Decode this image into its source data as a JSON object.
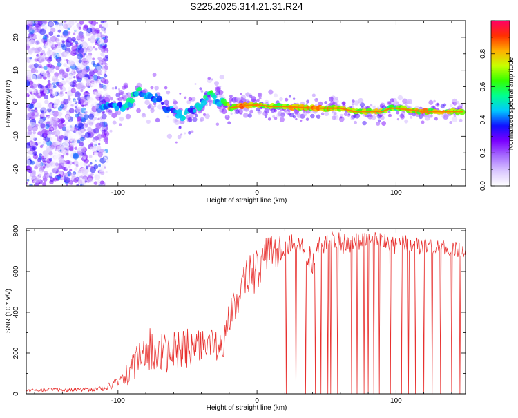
{
  "figure": {
    "title": "S225.2025.314.21.31.R24"
  },
  "colors": {
    "colorbar_stops": [
      "#ffffff",
      "#d9c6ff",
      "#a66cff",
      "#7a00ff",
      "#1010ff",
      "#00c8ff",
      "#00ff90",
      "#33ff00",
      "#c8ff00",
      "#ffb000",
      "#ff3000",
      "#ff0066"
    ],
    "snr_line": "#e8312f",
    "axis": "#000000"
  },
  "chart_data": [
    {
      "type": "heatmap",
      "xlabel": "Height of straight line (km)",
      "ylabel": "Frequency (Hz)",
      "xlim": [
        -166,
        150
      ],
      "ylim": [
        -25,
        25
      ],
      "xticks": [
        -100,
        0,
        100
      ],
      "xtick_labels": [
        "-100",
        "0",
        "100"
      ],
      "yticks": [
        -20,
        -10,
        0,
        10,
        20
      ],
      "ytick_labels": [
        "-20",
        "-10",
        "0",
        "10",
        "20"
      ],
      "colorbar": {
        "label": "Normalized spectral amplitude",
        "range": [
          0,
          1
        ],
        "ticks": [
          0,
          0.2,
          0.4,
          0.6,
          0.8
        ],
        "tick_labels": [
          "0.0",
          "0.2",
          "0.4",
          "0.6",
          "0.8"
        ]
      },
      "ridge": {
        "x": [
          -112,
          -100,
          -90,
          -85,
          -80,
          -72,
          -66,
          -60,
          -54,
          -46,
          -38,
          -32,
          -28,
          -20,
          -10,
          0,
          10,
          20,
          40,
          60,
          70,
          80,
          90,
          96,
          100,
          110,
          120,
          130,
          148
        ],
        "frequency": [
          -1.5,
          -1.5,
          1.0,
          3.5,
          2.0,
          1.5,
          -1.0,
          -3.0,
          -4.0,
          -2.0,
          1.0,
          3.0,
          0.5,
          -1.5,
          -0.7,
          -0.5,
          -1.0,
          -1.0,
          -1.5,
          -1.5,
          -2.5,
          -2.5,
          -2.5,
          -1.5,
          -1.5,
          -2.0,
          -2.5,
          -2.5,
          -2.5
        ],
        "amplitude": [
          0.45,
          0.5,
          0.55,
          0.55,
          0.5,
          0.45,
          0.4,
          0.45,
          0.5,
          0.45,
          0.55,
          0.6,
          0.5,
          0.8,
          0.9,
          0.85,
          0.75,
          0.8,
          0.85,
          0.85,
          0.8,
          0.75,
          0.8,
          0.7,
          0.7,
          0.8,
          0.85,
          0.85,
          0.85
        ]
      }
    },
    {
      "type": "line",
      "xlabel": "Height of straight line (km)",
      "ylabel": "SNR (10 * v/v)",
      "xlim": [
        -166,
        150
      ],
      "ylim": [
        0,
        810
      ],
      "xticks": [
        -100,
        0,
        100
      ],
      "xtick_labels": [
        "-100",
        "0",
        "100"
      ],
      "yticks": [
        0,
        200,
        400,
        600,
        800
      ],
      "ytick_labels": [
        "0",
        "200",
        "400",
        "600",
        "800"
      ],
      "series": [
        {
          "x": [
            -166,
            -150,
            -140,
            -130,
            -120,
            -110,
            -100,
            -95,
            -90,
            -85,
            -80,
            -75,
            -70,
            -65,
            -60,
            -55,
            -50,
            -45,
            -40,
            -35,
            -30,
            -25,
            -22,
            -20,
            -15,
            -10,
            -5,
            0,
            5,
            10,
            15,
            20,
            25,
            30,
            35,
            40,
            45,
            50,
            55,
            60,
            70,
            80,
            90,
            100,
            110,
            120,
            130,
            140,
            150
          ],
          "low": [
            10,
            12,
            10,
            12,
            12,
            15,
            20,
            30,
            50,
            80,
            100,
            110,
            90,
            100,
            110,
            120,
            130,
            140,
            150,
            160,
            150,
            140,
            230,
            300,
            360,
            380,
            420,
            460,
            500,
            580,
            620,
            650,
            690,
            700,
            640,
            560,
            660,
            700,
            720,
            680,
            690,
            700,
            700,
            680,
            690,
            680,
            680,
            660,
            670
          ],
          "high": [
            22,
            30,
            25,
            28,
            30,
            40,
            80,
            140,
            200,
            280,
            330,
            320,
            300,
            300,
            320,
            330,
            340,
            330,
            350,
            340,
            320,
            280,
            400,
            480,
            540,
            620,
            700,
            760,
            780,
            790,
            780,
            780,
            790,
            770,
            760,
            720,
            770,
            790,
            800,
            790,
            790,
            800,
            790,
            780,
            780,
            770,
            770,
            760,
            740
          ],
          "dropouts": [
            21,
            28,
            35,
            42,
            46,
            51,
            53,
            58,
            68,
            72,
            77,
            80,
            84,
            88,
            96,
            104,
            109,
            114,
            120,
            126,
            132,
            140,
            146
          ]
        }
      ]
    }
  ]
}
